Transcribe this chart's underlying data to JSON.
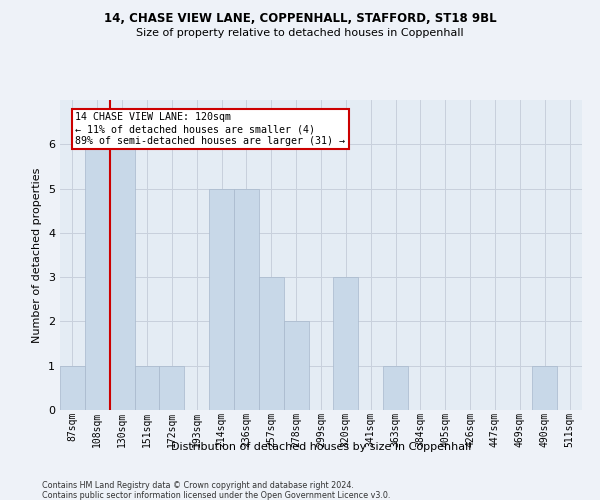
{
  "title1": "14, CHASE VIEW LANE, COPPENHALL, STAFFORD, ST18 9BL",
  "title2": "Size of property relative to detached houses in Coppenhall",
  "xlabel": "Distribution of detached houses by size in Coppenhall",
  "ylabel": "Number of detached properties",
  "categories": [
    "87sqm",
    "108sqm",
    "130sqm",
    "151sqm",
    "172sqm",
    "193sqm",
    "214sqm",
    "236sqm",
    "257sqm",
    "278sqm",
    "299sqm",
    "320sqm",
    "341sqm",
    "363sqm",
    "384sqm",
    "405sqm",
    "426sqm",
    "447sqm",
    "469sqm",
    "490sqm",
    "511sqm"
  ],
  "values": [
    1,
    6,
    6,
    1,
    1,
    0,
    5,
    5,
    3,
    2,
    0,
    3,
    0,
    1,
    0,
    0,
    0,
    0,
    0,
    1,
    0
  ],
  "bar_color": "#c8d8e8",
  "bar_edge_color": "#a8b8cc",
  "subject_line_color": "#cc0000",
  "annotation_text": "14 CHASE VIEW LANE: 120sqm\n← 11% of detached houses are smaller (4)\n89% of semi-detached houses are larger (31) →",
  "annotation_box_color": "#ffffff",
  "annotation_box_edge": "#cc0000",
  "footnote1": "Contains HM Land Registry data © Crown copyright and database right 2024.",
  "footnote2": "Contains public sector information licensed under the Open Government Licence v3.0.",
  "ylim": [
    0,
    7
  ],
  "yticks": [
    0,
    1,
    2,
    3,
    4,
    5,
    6
  ],
  "grid_color": "#c8d0dc",
  "background_color": "#e4ecf4",
  "fig_background": "#eef2f8"
}
